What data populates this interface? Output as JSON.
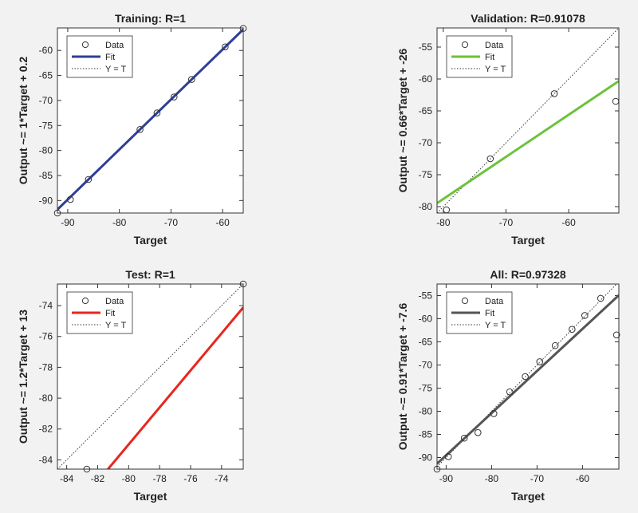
{
  "chart_data": [
    {
      "type": "scatter",
      "title": "Training: R=1",
      "xlabel": "Target",
      "ylabel": "Output ~= 1*Target + 0.2",
      "xlim": [
        -92,
        -56
      ],
      "ylim": [
        -92.5,
        -55.5
      ],
      "xticks": [
        -90,
        -80,
        -70,
        -60
      ],
      "yticks": [
        -90,
        -85,
        -80,
        -75,
        -70,
        -65,
        -60
      ],
      "fit_color": "#2e3f95",
      "fit": {
        "slope": 1,
        "intercept": 0.2
      },
      "points": [
        [
          -92,
          -92.5
        ],
        [
          -89.5,
          -89.8
        ],
        [
          -86,
          -85.8
        ],
        [
          -76,
          -75.8
        ],
        [
          -72.7,
          -72.5
        ],
        [
          -69.4,
          -69.3
        ],
        [
          -66,
          -65.8
        ],
        [
          -59.5,
          -59.3
        ],
        [
          -56,
          -55.6
        ]
      ],
      "legend": [
        "Data",
        "Fit",
        "Y = T"
      ]
    },
    {
      "type": "scatter",
      "title": "Validation: R=0.91078",
      "xlabel": "Target",
      "ylabel": "Output ~= 0.66*Target + -26",
      "xlim": [
        -81,
        -52
      ],
      "ylim": [
        -81,
        -52
      ],
      "xticks": [
        -80,
        -70,
        -60
      ],
      "yticks": [
        -80,
        -75,
        -70,
        -65,
        -60,
        -55
      ],
      "fit_color": "#6cc23a",
      "fit": {
        "slope": 0.66,
        "intercept": -26
      },
      "points": [
        [
          -79.5,
          -80.5
        ],
        [
          -72.5,
          -72.5
        ],
        [
          -62.3,
          -62.3
        ],
        [
          -52.5,
          -63.5
        ]
      ],
      "legend": [
        "Data",
        "Fit",
        "Y = T"
      ]
    },
    {
      "type": "scatter",
      "title": "Test: R=1",
      "xlabel": "Target",
      "ylabel": "Output ~= 1.2*Target + 13",
      "xlim": [
        -84.6,
        -72.6
      ],
      "ylim": [
        -84.6,
        -72.6
      ],
      "xticks": [
        -84,
        -82,
        -80,
        -78,
        -76,
        -74
      ],
      "yticks": [
        -84,
        -82,
        -80,
        -78,
        -76,
        -74
      ],
      "fit_color": "#e8261f",
      "fit": {
        "slope": 1.2,
        "intercept": 13
      },
      "points": [
        [
          -82.7,
          -84.6
        ],
        [
          -72.6,
          -72.6
        ]
      ],
      "legend": [
        "Data",
        "Fit",
        "Y = T"
      ]
    },
    {
      "type": "scatter",
      "title": "All: R=0.97328",
      "xlabel": "Target",
      "ylabel": "Output ~= 0.91*Target + -7.6",
      "xlim": [
        -92,
        -52
      ],
      "ylim": [
        -92.5,
        -52.5
      ],
      "xticks": [
        -90,
        -80,
        -70,
        -60
      ],
      "yticks": [
        -90,
        -85,
        -80,
        -75,
        -70,
        -65,
        -60,
        -55
      ],
      "fit_color": "#555555",
      "fit": {
        "slope": 0.91,
        "intercept": -7.6
      },
      "points": [
        [
          -92,
          -92.5
        ],
        [
          -89.5,
          -89.8
        ],
        [
          -86,
          -85.8
        ],
        [
          -83,
          -84.6
        ],
        [
          -79.5,
          -80.5
        ],
        [
          -76,
          -75.8
        ],
        [
          -72.6,
          -72.5
        ],
        [
          -69.4,
          -69.3
        ],
        [
          -66,
          -65.8
        ],
        [
          -62.3,
          -62.3
        ],
        [
          -59.5,
          -59.3
        ],
        [
          -56,
          -55.6
        ],
        [
          -52.5,
          -63.5
        ]
      ],
      "legend": [
        "Data",
        "Fit",
        "Y = T"
      ]
    }
  ]
}
